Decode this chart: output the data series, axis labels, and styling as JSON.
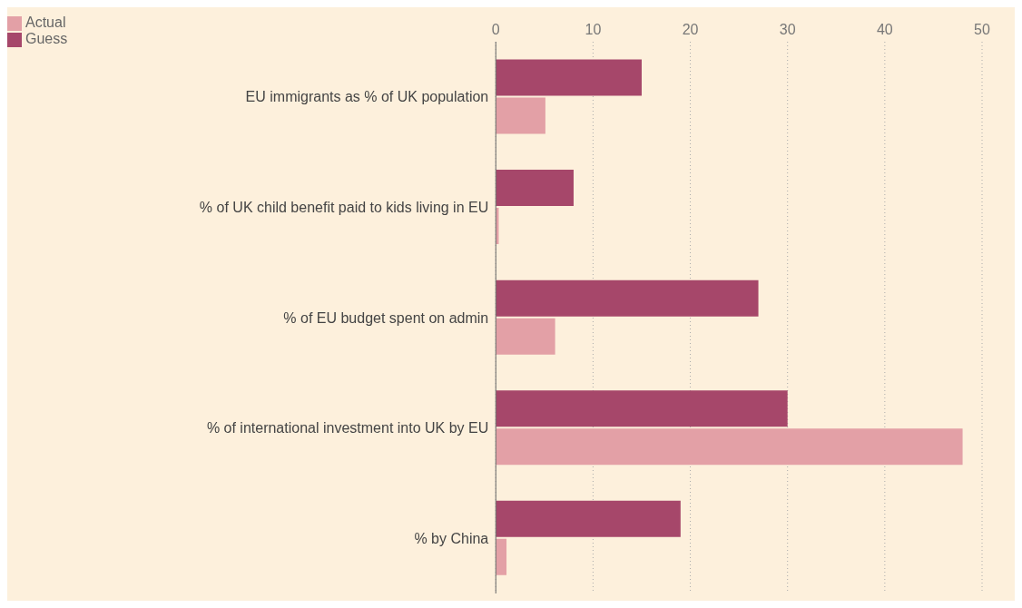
{
  "chart_data": {
    "type": "bar",
    "orientation": "horizontal",
    "categories": [
      "EU immigrants as % of UK population",
      "% of UK child benefit paid to kids living in EU",
      "% of EU budget spent on admin",
      "% of international investment into UK by EU",
      "% by China"
    ],
    "series": [
      {
        "name": "Guess",
        "color": "#a6476a",
        "values": [
          15,
          8,
          27,
          30,
          19
        ]
      },
      {
        "name": "Actual",
        "color": "#e3a0a6",
        "values": [
          5.1,
          0.3,
          6.1,
          48,
          1.1
        ]
      }
    ],
    "xlim": [
      0,
      50
    ],
    "xticks": [
      0,
      10,
      20,
      30,
      40,
      50
    ],
    "grid": "x",
    "legend": "top left"
  }
}
